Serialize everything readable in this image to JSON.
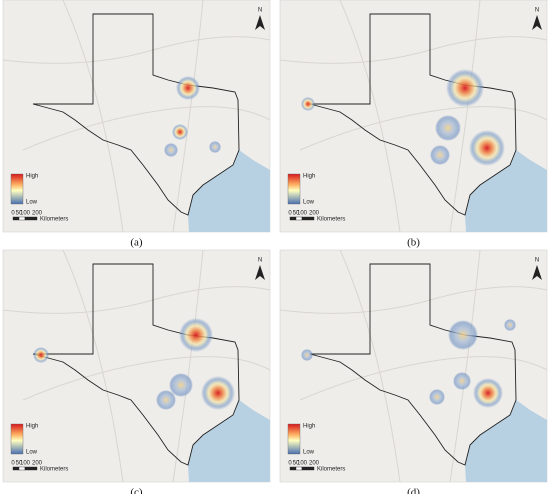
{
  "panels": [
    {
      "caption": "(a)",
      "north": "N",
      "legend_high": "High",
      "legend_low": "Low",
      "scale_ticks": [
        "0",
        "50",
        "100",
        "200"
      ],
      "scale_unit": "Kilometers"
    },
    {
      "caption": "(b)",
      "north": "N",
      "legend_high": "High",
      "legend_low": "Low",
      "scale_ticks": [
        "0",
        "50",
        "100",
        "200"
      ],
      "scale_unit": "Kilometers"
    },
    {
      "caption": "(c)",
      "north": "N",
      "legend_high": "High",
      "legend_low": "Low",
      "scale_ticks": [
        "0",
        "50",
        "100",
        "200"
      ],
      "scale_unit": "Kilometers"
    },
    {
      "caption": "(d)",
      "north": "N",
      "legend_high": "High",
      "legend_low": "Low",
      "scale_ticks": [
        "0",
        "50",
        "100",
        "200"
      ],
      "scale_unit": "Kilometers"
    }
  ]
}
